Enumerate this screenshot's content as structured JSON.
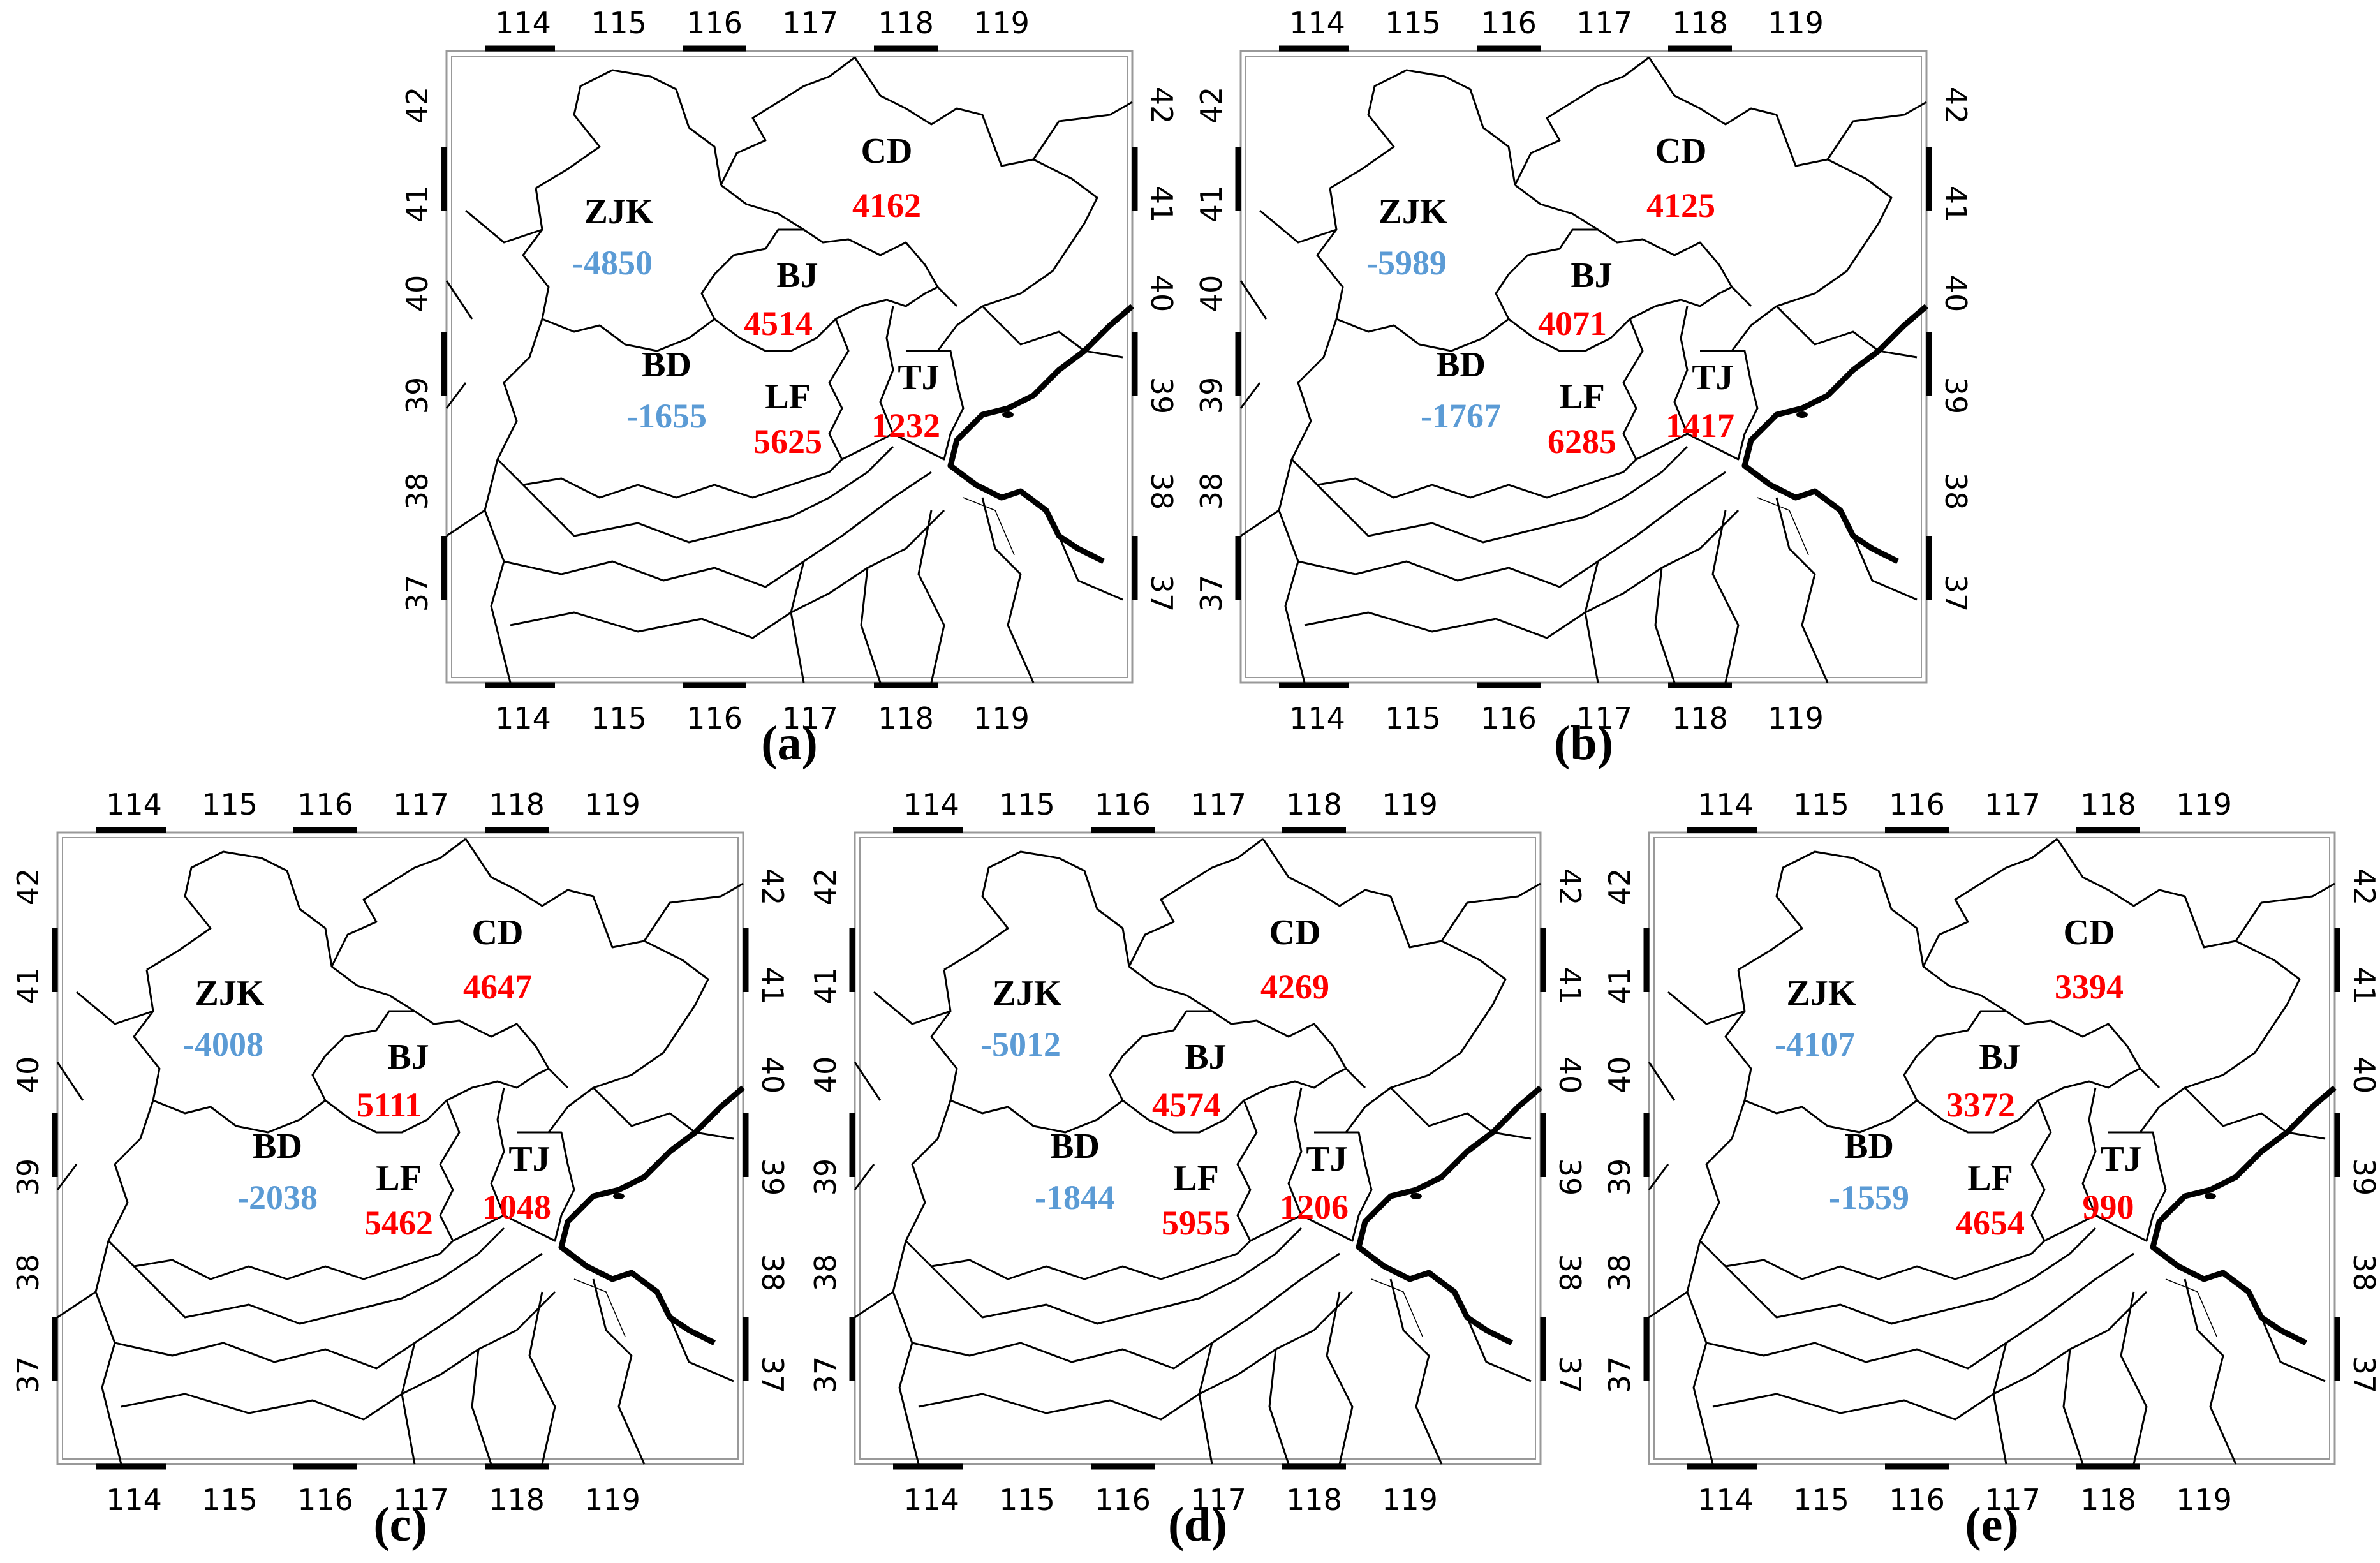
{
  "figure": {
    "lon_ticks": [
      "114",
      "115",
      "116",
      "117",
      "118",
      "119"
    ],
    "lat_ticks": [
      "37",
      "38",
      "39",
      "40",
      "41",
      "42"
    ],
    "colors": {
      "positive": "#ff0000",
      "negative": "#5b9bd5",
      "label": "#000000",
      "frame": "#999999"
    },
    "panels": [
      {
        "label": "(a)",
        "regions": [
          {
            "code": "CD",
            "value": "4162"
          },
          {
            "code": "ZJK",
            "value": "-4850"
          },
          {
            "code": "BJ",
            "value": "4514"
          },
          {
            "code": "TJ",
            "value": "1232"
          },
          {
            "code": "BD",
            "value": "-1655"
          },
          {
            "code": "LF",
            "value": "5625"
          }
        ]
      },
      {
        "label": "(b)",
        "regions": [
          {
            "code": "CD",
            "value": "4125"
          },
          {
            "code": "ZJK",
            "value": "-5989"
          },
          {
            "code": "BJ",
            "value": "4071"
          },
          {
            "code": "TJ",
            "value": "1417"
          },
          {
            "code": "BD",
            "value": "-1767"
          },
          {
            "code": "LF",
            "value": "6285"
          }
        ]
      },
      {
        "label": "(c)",
        "regions": [
          {
            "code": "CD",
            "value": "4647"
          },
          {
            "code": "ZJK",
            "value": "-4008"
          },
          {
            "code": "BJ",
            "value": "5111"
          },
          {
            "code": "TJ",
            "value": "1048"
          },
          {
            "code": "BD",
            "value": "-2038"
          },
          {
            "code": "LF",
            "value": "5462"
          }
        ]
      },
      {
        "label": "(d)",
        "regions": [
          {
            "code": "CD",
            "value": "4269"
          },
          {
            "code": "ZJK",
            "value": "-5012"
          },
          {
            "code": "BJ",
            "value": "4574"
          },
          {
            "code": "TJ",
            "value": "1206"
          },
          {
            "code": "BD",
            "value": "-1844"
          },
          {
            "code": "LF",
            "value": "5955"
          }
        ]
      },
      {
        "label": "(e)",
        "regions": [
          {
            "code": "CD",
            "value": "3394"
          },
          {
            "code": "ZJK",
            "value": "-4107"
          },
          {
            "code": "BJ",
            "value": "3372"
          },
          {
            "code": "TJ",
            "value": "990"
          },
          {
            "code": "BD",
            "value": "-1559"
          },
          {
            "code": "LF",
            "value": "4654"
          }
        ]
      }
    ]
  }
}
